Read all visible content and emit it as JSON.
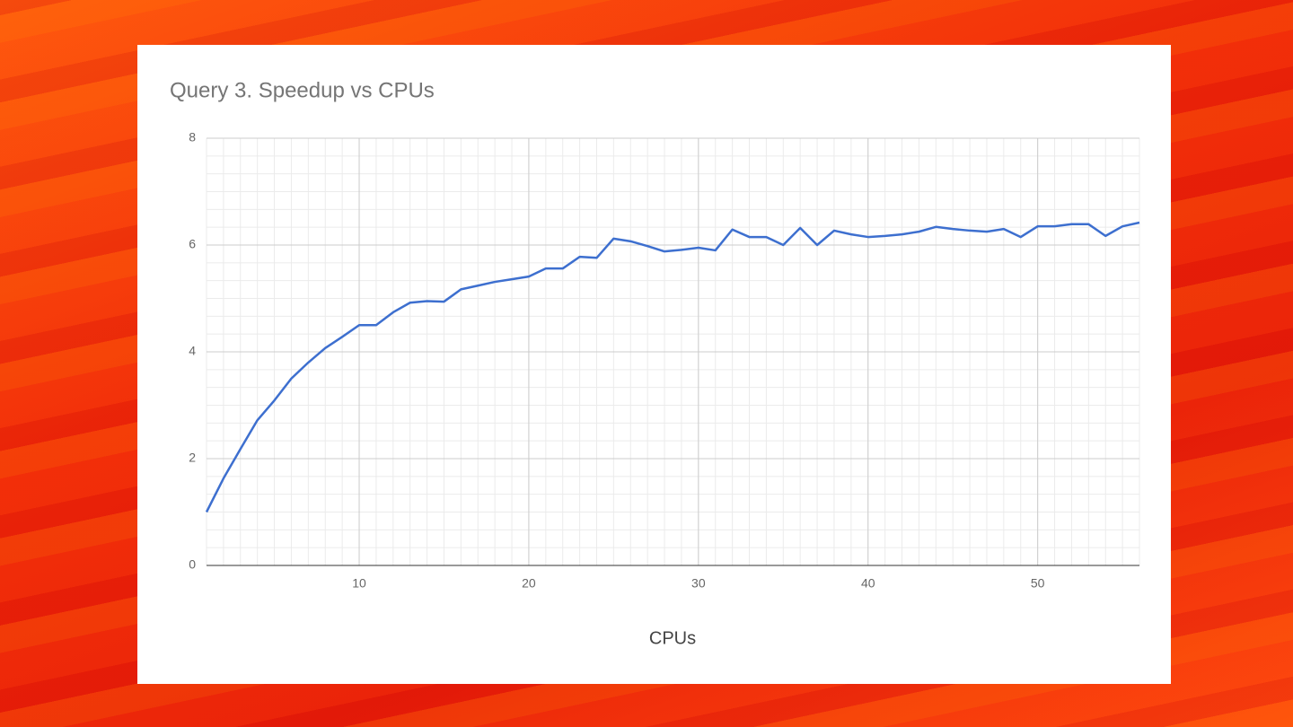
{
  "chart_data": {
    "type": "line",
    "title": "Query 3. Speedup vs CPUs",
    "x_label": "CPUs",
    "x": [
      1,
      2,
      3,
      4,
      5,
      6,
      7,
      8,
      9,
      10,
      11,
      12,
      13,
      14,
      15,
      16,
      17,
      18,
      19,
      20,
      21,
      22,
      23,
      24,
      25,
      26,
      27,
      28,
      29,
      30,
      31,
      32,
      33,
      34,
      35,
      36,
      37,
      38,
      39,
      40,
      41,
      42,
      43,
      44,
      45,
      46,
      47,
      48,
      49,
      50,
      51,
      52,
      53,
      54,
      55,
      56
    ],
    "series": [
      {
        "name": "Speedup",
        "color": "#3d6fcf",
        "values": [
          1.0,
          1.63,
          2.18,
          2.72,
          3.09,
          3.5,
          3.8,
          4.07,
          4.28,
          4.5,
          4.5,
          4.74,
          4.92,
          4.95,
          4.94,
          5.17,
          5.24,
          5.31,
          5.36,
          5.41,
          5.56,
          5.56,
          5.78,
          5.76,
          6.12,
          6.07,
          5.98,
          5.88,
          5.91,
          5.95,
          5.9,
          6.29,
          6.15,
          6.15,
          6.0,
          6.32,
          6.0,
          6.27,
          6.2,
          6.15,
          6.17,
          6.2,
          6.25,
          6.34,
          6.3,
          6.27,
          6.25,
          6.3,
          6.15,
          6.35,
          6.35,
          6.39,
          6.39,
          6.17,
          6.35,
          6.42
        ]
      }
    ],
    "xlim": [
      1,
      56
    ],
    "xticks": [
      10,
      20,
      30,
      40,
      50
    ],
    "ylim": [
      0,
      8
    ],
    "yticks": [
      0,
      2,
      4,
      6,
      8
    ],
    "grid": true,
    "minor_grid": true
  }
}
